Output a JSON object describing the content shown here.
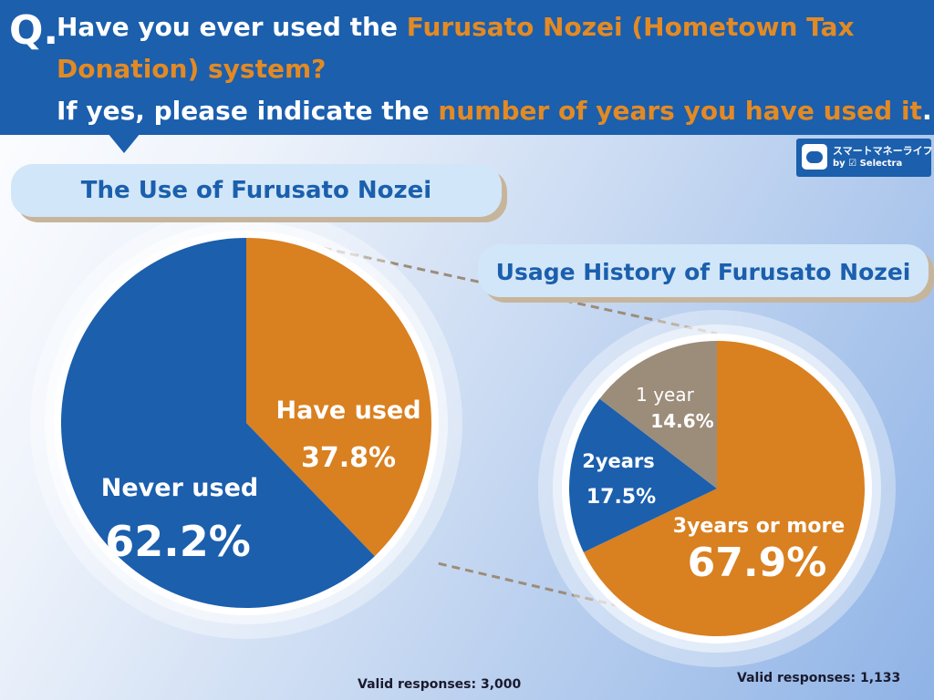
{
  "header": {
    "q_mark": "Q.",
    "line1_a": "Have you ever used the ",
    "line1_b": "Furusato Nozei (Hometown Tax",
    "line2": "Donation) system?",
    "line3_a": "If yes, please indicate the ",
    "line3_b": "number of years you have used it",
    "line3_c": "."
  },
  "brand": {
    "line1": "スマートマネーライフ",
    "line2": "by ☑ Selectra",
    "icon": "piggy-bank-icon"
  },
  "colors": {
    "blue": "#1b5fad",
    "orange": "#d98020",
    "gray": "#9c8c7a",
    "highlight": "#e38a24"
  },
  "chart_data": [
    {
      "type": "pie",
      "title": "The Use of Furusato Nozei",
      "slices": [
        {
          "label": "Have used",
          "value": 37.8,
          "display": "37.8%",
          "color": "#d98020"
        },
        {
          "label": "Never used",
          "value": 62.2,
          "display": "62.2%",
          "color": "#1b5fad"
        }
      ],
      "footnote": "Valid responses: 3,000"
    },
    {
      "type": "pie",
      "title": "Usage History of Furusato Nozei",
      "slices": [
        {
          "label": "3years or more",
          "value": 67.9,
          "display": "67.9%",
          "color": "#d98020"
        },
        {
          "label": "2years",
          "value": 17.5,
          "display": "17.5%",
          "color": "#1b5fad"
        },
        {
          "label": "1 year",
          "value": 14.6,
          "display": "14.6%",
          "color": "#9c8c7a"
        }
      ],
      "footnote": "Valid responses: 1,133"
    }
  ]
}
